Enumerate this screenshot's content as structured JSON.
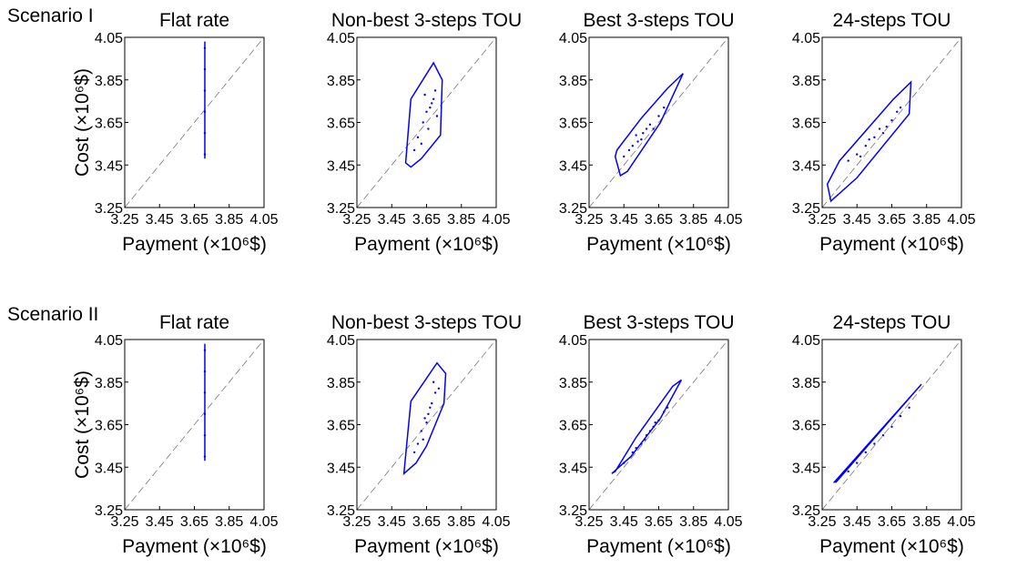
{
  "row_labels": [
    "Scenario I",
    "Scenario II"
  ],
  "chart_data": [
    {
      "type": "scatter",
      "title": "Flat rate",
      "xlabel": "Payment (×10⁶$)",
      "ylabel": "Cost (×10⁶$)",
      "color": "#0000ff",
      "xlim": [
        3.25,
        4.05
      ],
      "ylim": [
        3.25,
        4.05
      ],
      "xticks": [
        3.25,
        3.45,
        3.65,
        3.85,
        4.05
      ],
      "yticks": [
        3.25,
        3.45,
        3.65,
        3.85,
        4.05
      ],
      "hull_x": [
        3.71,
        3.71
      ],
      "hull_y": [
        3.48,
        4.03
      ],
      "x": [
        3.71,
        3.71,
        3.71,
        3.71,
        3.71,
        3.71
      ],
      "y": [
        3.5,
        3.6,
        3.7,
        3.8,
        3.9,
        4.0
      ]
    },
    {
      "type": "scatter",
      "title": "Non-best 3-steps TOU",
      "xlabel": "Payment (×10⁶$)",
      "color": "#0000ff",
      "xlim": [
        3.25,
        4.05
      ],
      "ylim": [
        3.25,
        4.05
      ],
      "xticks": [
        3.25,
        3.45,
        3.65,
        3.85,
        4.05
      ],
      "yticks": [
        3.25,
        3.45,
        3.65,
        3.85,
        4.05
      ],
      "hull_x": [
        3.53,
        3.56,
        3.69,
        3.74,
        3.73,
        3.62,
        3.56
      ],
      "hull_y": [
        3.46,
        3.76,
        3.93,
        3.85,
        3.59,
        3.48,
        3.44
      ],
      "x": [
        3.6,
        3.63,
        3.65,
        3.66,
        3.68,
        3.7,
        3.62,
        3.67,
        3.71,
        3.58,
        3.64,
        3.69
      ],
      "y": [
        3.58,
        3.65,
        3.7,
        3.62,
        3.74,
        3.8,
        3.55,
        3.72,
        3.68,
        3.52,
        3.78,
        3.76
      ]
    },
    {
      "type": "scatter",
      "title": "Best 3-steps TOU",
      "xlabel": "Payment (×10⁶$)",
      "color": "#0000ff",
      "xlim": [
        3.25,
        4.05
      ],
      "ylim": [
        3.25,
        4.05
      ],
      "xticks": [
        3.25,
        3.45,
        3.65,
        3.85,
        4.05
      ],
      "yticks": [
        3.25,
        3.45,
        3.65,
        3.85,
        4.05
      ],
      "hull_x": [
        3.4,
        3.43,
        3.47,
        3.66,
        3.79,
        3.7,
        3.55,
        3.41
      ],
      "hull_y": [
        3.49,
        3.4,
        3.42,
        3.65,
        3.88,
        3.81,
        3.67,
        3.52
      ],
      "x": [
        3.45,
        3.5,
        3.53,
        3.56,
        3.58,
        3.6,
        3.62,
        3.65,
        3.55,
        3.48,
        3.68,
        3.52
      ],
      "y": [
        3.49,
        3.54,
        3.56,
        3.6,
        3.62,
        3.64,
        3.62,
        3.68,
        3.57,
        3.52,
        3.72,
        3.59
      ]
    },
    {
      "type": "scatter",
      "title": "24-steps TOU",
      "xlabel": "Payment (×10⁶$)",
      "color": "#0000ff",
      "xlim": [
        3.25,
        4.05
      ],
      "ylim": [
        3.25,
        4.05
      ],
      "xticks": [
        3.25,
        3.45,
        3.65,
        3.85,
        4.05
      ],
      "yticks": [
        3.25,
        3.45,
        3.65,
        3.85,
        4.05
      ],
      "hull_x": [
        3.28,
        3.3,
        3.45,
        3.75,
        3.76,
        3.66,
        3.35
      ],
      "hull_y": [
        3.36,
        3.28,
        3.39,
        3.69,
        3.84,
        3.76,
        3.47
      ],
      "x": [
        3.4,
        3.45,
        3.5,
        3.55,
        3.58,
        3.6,
        3.62,
        3.65,
        3.68,
        3.52,
        3.47,
        3.7
      ],
      "y": [
        3.47,
        3.5,
        3.54,
        3.58,
        3.62,
        3.6,
        3.63,
        3.66,
        3.7,
        3.57,
        3.49,
        3.72
      ]
    },
    {
      "type": "scatter",
      "title": "Flat rate",
      "xlabel": "Payment (×10⁶$)",
      "ylabel": "Cost (×10⁶$)",
      "color": "#0000ff",
      "xlim": [
        3.25,
        4.05
      ],
      "ylim": [
        3.25,
        4.05
      ],
      "xticks": [
        3.25,
        3.45,
        3.65,
        3.85,
        4.05
      ],
      "yticks": [
        3.25,
        3.45,
        3.65,
        3.85,
        4.05
      ],
      "hull_x": [
        3.71,
        3.71
      ],
      "hull_y": [
        3.48,
        4.03
      ],
      "x": [
        3.71,
        3.71,
        3.71,
        3.71,
        3.71,
        3.71
      ],
      "y": [
        3.5,
        3.6,
        3.7,
        3.8,
        3.9,
        4.0
      ]
    },
    {
      "type": "scatter",
      "title": "Non-best 3-steps TOU",
      "xlabel": "Payment (×10⁶$)",
      "color": "#0000ff",
      "xlim": [
        3.25,
        4.05
      ],
      "ylim": [
        3.25,
        4.05
      ],
      "xticks": [
        3.25,
        3.45,
        3.65,
        3.85,
        4.05
      ],
      "yticks": [
        3.25,
        3.45,
        3.65,
        3.85,
        4.05
      ],
      "hull_x": [
        3.52,
        3.56,
        3.71,
        3.76,
        3.75,
        3.65,
        3.59
      ],
      "hull_y": [
        3.42,
        3.76,
        3.94,
        3.89,
        3.75,
        3.55,
        3.47
      ],
      "x": [
        3.6,
        3.62,
        3.64,
        3.66,
        3.68,
        3.7,
        3.65,
        3.63,
        3.67,
        3.58,
        3.69,
        3.72
      ],
      "y": [
        3.56,
        3.62,
        3.68,
        3.7,
        3.75,
        3.8,
        3.66,
        3.58,
        3.73,
        3.52,
        3.85,
        3.82
      ]
    },
    {
      "type": "scatter",
      "title": "Best 3-steps TOU",
      "xlabel": "Payment (×10⁶$)",
      "color": "#0000ff",
      "xlim": [
        3.25,
        4.05
      ],
      "ylim": [
        3.25,
        4.05
      ],
      "xticks": [
        3.25,
        3.45,
        3.65,
        3.85,
        4.05
      ],
      "yticks": [
        3.25,
        3.45,
        3.65,
        3.85,
        4.05
      ],
      "hull_x": [
        3.38,
        3.49,
        3.66,
        3.78,
        3.73,
        3.52,
        3.4
      ],
      "hull_y": [
        3.42,
        3.5,
        3.68,
        3.86,
        3.83,
        3.59,
        3.43
      ],
      "x": [
        3.45,
        3.5,
        3.55,
        3.58,
        3.6,
        3.62,
        3.65,
        3.68,
        3.52,
        3.57,
        3.63,
        3.7
      ],
      "y": [
        3.47,
        3.52,
        3.56,
        3.6,
        3.62,
        3.64,
        3.67,
        3.71,
        3.54,
        3.58,
        3.66,
        3.73
      ]
    },
    {
      "type": "scatter",
      "title": "24-steps TOU",
      "xlabel": "Payment (×10⁶$)",
      "color": "#0000ff",
      "xlim": [
        3.25,
        4.05
      ],
      "ylim": [
        3.25,
        4.05
      ],
      "xticks": [
        3.25,
        3.45,
        3.65,
        3.85,
        4.05
      ],
      "yticks": [
        3.25,
        3.45,
        3.65,
        3.85,
        4.05
      ],
      "hull_x": [
        3.33,
        3.82,
        3.81,
        3.32
      ],
      "hull_y": [
        3.38,
        3.84,
        3.83,
        3.38
      ],
      "x": [
        3.4,
        3.45,
        3.5,
        3.55,
        3.6,
        3.65,
        3.7,
        3.75
      ],
      "y": [
        3.43,
        3.47,
        3.52,
        3.56,
        3.6,
        3.64,
        3.69,
        3.73
      ]
    }
  ]
}
